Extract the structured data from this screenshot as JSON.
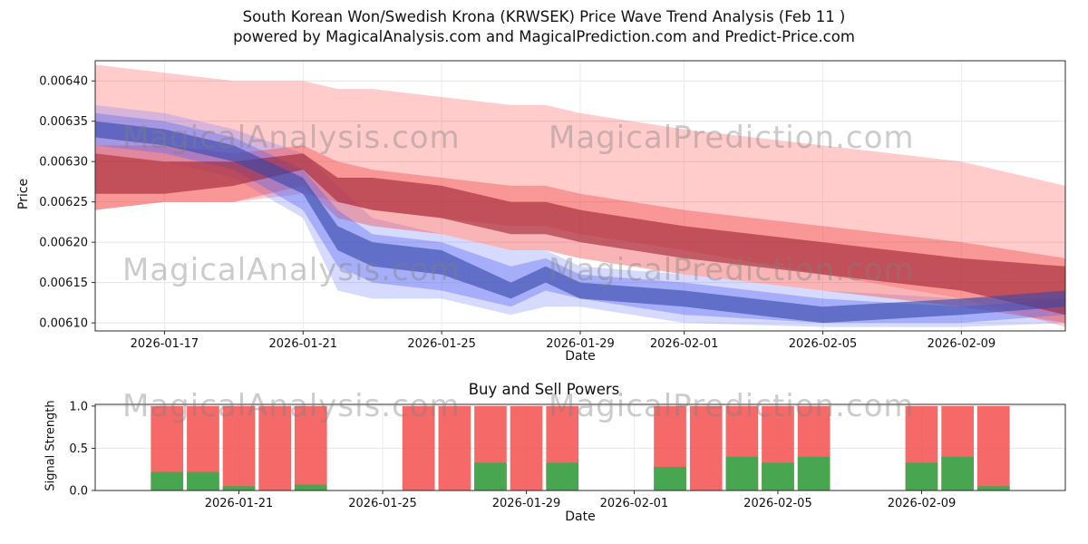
{
  "figure": {
    "title": "South Korean Won/Swedish Krona (KRWSEK) Price Wave Trend Analysis (Feb 11 )",
    "subtitle": "powered by MagicalAnalysis.com and MagicalPrediction.com and Predict-Price.com",
    "watermark_left": "MagicalAnalysis.com",
    "watermark_right": "MagicalPrediction.com"
  },
  "chart_data": [
    {
      "type": "area",
      "name": "price-wave-trend",
      "xlabel": "Date",
      "ylabel": "Price",
      "xlim": [
        0,
        28
      ],
      "ylim": [
        0.00609,
        0.006425
      ],
      "x_tick_days": [
        2,
        6,
        10,
        14,
        17,
        21,
        25
      ],
      "x_tick_labels": [
        "2026-01-17",
        "2026-01-21",
        "2026-01-25",
        "2026-01-29",
        "2026-02-01",
        "2026-02-05",
        "2026-02-09"
      ],
      "y_ticks": [
        0.0061,
        0.00615,
        0.0062,
        0.00625,
        0.0063,
        0.00635,
        0.0064
      ],
      "y_tick_labels": [
        "0.00610",
        "0.00615",
        "0.00620",
        "0.00625",
        "0.00630",
        "0.00635",
        "0.00640"
      ],
      "x_days": [
        0,
        2,
        4,
        6,
        7,
        8,
        10,
        12,
        13,
        14,
        17,
        21,
        25,
        28
      ],
      "x_dates": [
        "2026-01-15",
        "2026-01-17",
        "2026-01-19",
        "2026-01-21",
        "2026-01-22",
        "2026-01-23",
        "2026-01-25",
        "2026-01-27",
        "2026-01-28",
        "2026-01-29",
        "2026-02-01",
        "2026-02-05",
        "2026-02-09",
        "2026-02-12"
      ],
      "bands": [
        {
          "name": "red-band-outer",
          "color": "#ff5252",
          "opacity": 0.3,
          "upper": [
            0.00642,
            0.00641,
            0.0064,
            0.0064,
            0.00639,
            0.00639,
            0.00638,
            0.00637,
            0.00637,
            0.00636,
            0.00634,
            0.00632,
            0.0063,
            0.00627
          ],
          "lower": [
            0.00624,
            0.00625,
            0.00625,
            0.00626,
            0.00625,
            0.00624,
            0.00623,
            0.00622,
            0.00622,
            0.00621,
            0.00619,
            0.00616,
            0.00613,
            0.006095
          ]
        },
        {
          "name": "blue-band-outer",
          "color": "#7986ff",
          "opacity": 0.3,
          "upper": [
            0.00637,
            0.00636,
            0.00634,
            0.00631,
            0.00627,
            0.00623,
            0.00621,
            0.00619,
            0.00619,
            0.00617,
            0.00616,
            0.00614,
            0.00613,
            0.00613
          ],
          "lower": [
            0.00631,
            0.0063,
            0.00628,
            0.00623,
            0.00614,
            0.00613,
            0.00613,
            0.00611,
            0.00612,
            0.00612,
            0.0061,
            0.006095,
            0.006095,
            0.0061
          ]
        },
        {
          "name": "red-band-mid",
          "color": "#f04545",
          "opacity": 0.4,
          "upper": [
            0.00632,
            0.00632,
            0.00631,
            0.00632,
            0.0063,
            0.00629,
            0.00628,
            0.00627,
            0.00627,
            0.00626,
            0.00624,
            0.00622,
            0.0062,
            0.00618
          ],
          "lower": [
            0.00624,
            0.00625,
            0.00625,
            0.00627,
            0.00623,
            0.00622,
            0.00621,
            0.00619,
            0.00619,
            0.00618,
            0.00616,
            0.00614,
            0.00612,
            0.0061
          ]
        },
        {
          "name": "blue-band-mid",
          "color": "#5c6bf0",
          "opacity": 0.4,
          "upper": [
            0.00636,
            0.00635,
            0.00633,
            0.00629,
            0.00624,
            0.00621,
            0.0062,
            0.00617,
            0.00618,
            0.00616,
            0.00615,
            0.00613,
            0.00612,
            0.00613
          ],
          "lower": [
            0.00632,
            0.00631,
            0.00629,
            0.00624,
            0.00617,
            0.00615,
            0.00614,
            0.00612,
            0.00614,
            0.00613,
            0.00611,
            0.0061,
            0.0061,
            0.00611
          ]
        },
        {
          "name": "red-band-core",
          "color": "#a02535",
          "opacity": 0.62,
          "upper": [
            0.00631,
            0.0063,
            0.0063,
            0.00631,
            0.00628,
            0.00628,
            0.00627,
            0.00625,
            0.00625,
            0.00624,
            0.00622,
            0.0062,
            0.00618,
            0.00617
          ],
          "lower": [
            0.00626,
            0.00626,
            0.00627,
            0.00629,
            0.00625,
            0.00624,
            0.00623,
            0.00621,
            0.00621,
            0.0062,
            0.00618,
            0.00616,
            0.00614,
            0.00611
          ]
        },
        {
          "name": "blue-band-core",
          "color": "#3949ab",
          "opacity": 0.62,
          "upper": [
            0.00635,
            0.00634,
            0.00632,
            0.00628,
            0.00622,
            0.0062,
            0.00619,
            0.00615,
            0.00617,
            0.00615,
            0.00614,
            0.00612,
            0.00613,
            0.00614
          ],
          "lower": [
            0.00633,
            0.00632,
            0.0063,
            0.00626,
            0.00619,
            0.00617,
            0.00616,
            0.00613,
            0.00615,
            0.00613,
            0.00612,
            0.0061,
            0.00611,
            0.00612
          ]
        }
      ]
    },
    {
      "type": "bar",
      "name": "buy-sell-powers",
      "title": "Buy and Sell Powers",
      "xlabel": "Date",
      "ylabel": "Signal Strength",
      "xlim": [
        0,
        27
      ],
      "ylim": [
        0,
        1.02
      ],
      "x_tick_days": [
        4,
        8,
        12,
        15,
        19,
        23
      ],
      "x_tick_labels": [
        "2026-01-21",
        "2026-01-25",
        "2026-01-29",
        "2026-02-01",
        "2026-02-05",
        "2026-02-09"
      ],
      "y_ticks": [
        0.0,
        0.5,
        1.0
      ],
      "y_tick_labels": [
        "0.0",
        "0.5",
        "1.0"
      ],
      "bar_width_days": 0.9,
      "colors": {
        "sell": "#f44f4f",
        "buy": "#3faa4f"
      },
      "bars": {
        "dates": [
          "2026-01-19",
          "2026-01-20",
          "2026-01-21",
          "2026-01-22",
          "2026-01-23",
          "2026-01-26",
          "2026-01-27",
          "2026-01-28",
          "2026-01-29",
          "2026-01-30",
          "2026-02-02",
          "2026-02-03",
          "2026-02-04",
          "2026-02-05",
          "2026-02-06",
          "2026-02-09",
          "2026-02-10",
          "2026-02-11"
        ],
        "day_offsets": [
          2,
          3,
          4,
          5,
          6,
          9,
          10,
          11,
          12,
          13,
          16,
          17,
          18,
          19,
          20,
          23,
          24,
          25
        ],
        "sell": [
          1.0,
          1.0,
          1.0,
          1.0,
          1.0,
          1.0,
          1.0,
          1.0,
          1.0,
          1.0,
          1.0,
          1.0,
          1.0,
          1.0,
          1.0,
          1.0,
          1.0,
          1.0
        ],
        "buy": [
          0.22,
          0.22,
          0.05,
          0.0,
          0.07,
          0.0,
          0.0,
          0.33,
          0.0,
          0.33,
          0.28,
          0.0,
          0.4,
          0.33,
          0.4,
          0.33,
          0.4,
          0.05
        ]
      }
    }
  ]
}
